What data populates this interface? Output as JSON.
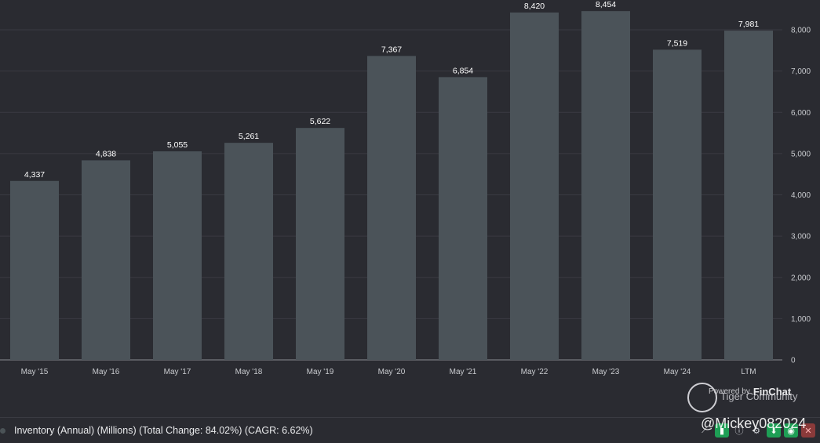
{
  "chart_data": {
    "type": "bar",
    "categories": [
      "May '15",
      "May '16",
      "May '17",
      "May '18",
      "May '19",
      "May '20",
      "May '21",
      "May '22",
      "May '23",
      "May '24",
      "LTM"
    ],
    "values": [
      4337,
      4838,
      5055,
      5261,
      5622,
      7367,
      6854,
      8420,
      8454,
      7519,
      7981
    ],
    "data_labels": [
      "4,337",
      "4,838",
      "5,055",
      "5,261",
      "5,622",
      "7,367",
      "6,854",
      "8,420",
      "8,454",
      "7,519",
      "7,981"
    ],
    "ylim": [
      0,
      8400
    ],
    "y_ticks": [
      0,
      1000,
      2000,
      3000,
      4000,
      5000,
      6000,
      7000,
      8000
    ],
    "y_tick_labels": [
      "0",
      "1,000",
      "2,000",
      "3,000",
      "4,000",
      "5,000",
      "6,000",
      "7,000",
      "8,000"
    ],
    "y_axis_side": "right",
    "grid": true,
    "bar_color": "#4b5359"
  },
  "legend": {
    "text": "Inventory (Annual) (Millions) (Total Change: 84.02%) (CAGR: 6.62%)"
  },
  "watermark": {
    "powered_by": "Powered by",
    "brand": "FinChat",
    "community": "Tiger Community",
    "user": "@Mickey082024"
  },
  "toolbar": {
    "icons": [
      "trend-icon",
      "bar-chart-icon",
      "info-icon",
      "gear-icon",
      "download-icon",
      "camera-icon",
      "close-icon"
    ]
  }
}
